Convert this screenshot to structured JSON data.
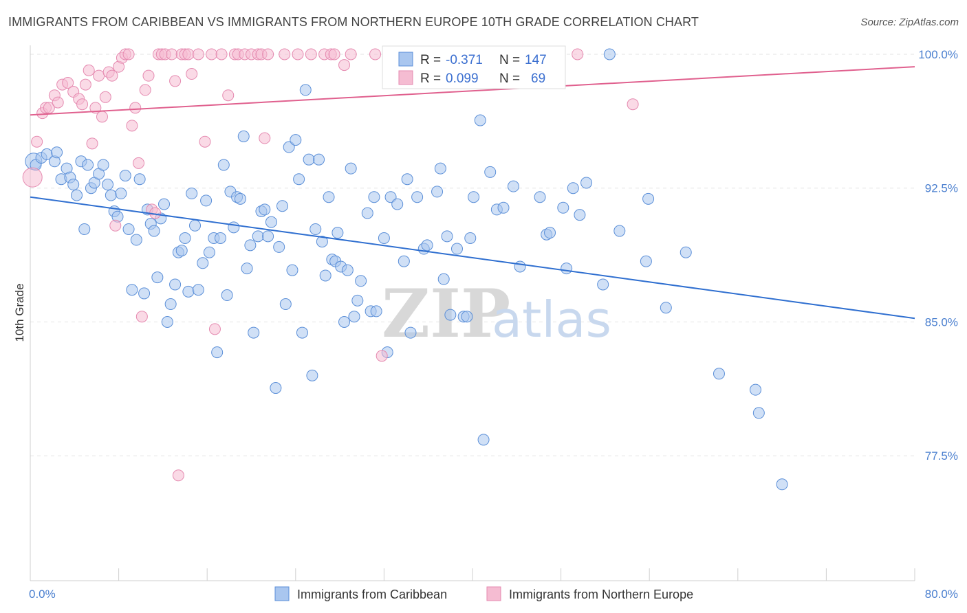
{
  "title": "IMMIGRANTS FROM CARIBBEAN VS IMMIGRANTS FROM NORTHERN EUROPE 10TH GRADE CORRELATION CHART",
  "source": "Source: ZipAtlas.com",
  "watermark": {
    "zip": "ZIP",
    "atlas": "atlas"
  },
  "colors": {
    "blue": "#5b8fd8",
    "blue_fill": "#a9c6ef",
    "blue_line": "#2f6fd0",
    "pink": "#e58ab0",
    "pink_fill": "#f5bcd2",
    "pink_line": "#e0608e"
  },
  "stats": {
    "blue": {
      "r_label": "R =",
      "r_value": "-0.371",
      "n_label": "N =",
      "n_value": "147"
    },
    "pink": {
      "r_label": "R =",
      "r_value": "0.099",
      "n_label": "N =",
      "n_value": "69"
    }
  },
  "chart_data": {
    "type": "scatter",
    "xlabel": "",
    "ylabel": "10th Grade",
    "xlim": [
      0,
      80
    ],
    "ylim": [
      70.5,
      100.5
    ],
    "x_tick_labels": [
      {
        "v": 0,
        "label": "0.0%"
      },
      {
        "v": 80,
        "label": "80.0%"
      }
    ],
    "y_tick_labels": [
      {
        "v": 100,
        "label": "100.0%"
      },
      {
        "v": 92.5,
        "label": "92.5%"
      },
      {
        "v": 85,
        "label": "85.0%"
      },
      {
        "v": 77.5,
        "label": "77.5%"
      }
    ],
    "legend": [
      "Immigrants from Caribbean",
      "Immigrants from Northern Europe"
    ],
    "series": [
      {
        "name": "Immigrants from Caribbean",
        "trend": [
          [
            0,
            92.0
          ],
          [
            80,
            85.2
          ]
        ],
        "points": [
          [
            0.5,
            93.8
          ],
          [
            1.0,
            94.2
          ],
          [
            1.5,
            94.4
          ],
          [
            2.2,
            94.0
          ],
          [
            2.4,
            94.5
          ],
          [
            2.8,
            93.0
          ],
          [
            3.3,
            93.6
          ],
          [
            3.6,
            93.1
          ],
          [
            3.9,
            92.7
          ],
          [
            4.2,
            92.1
          ],
          [
            4.6,
            94.0
          ],
          [
            4.9,
            90.2
          ],
          [
            5.2,
            93.8
          ],
          [
            5.5,
            92.5
          ],
          [
            5.8,
            92.8
          ],
          [
            6.2,
            93.3
          ],
          [
            6.6,
            93.8
          ],
          [
            7.0,
            92.7
          ],
          [
            7.3,
            92.1
          ],
          [
            7.6,
            91.2
          ],
          [
            7.9,
            90.9
          ],
          [
            8.2,
            92.2
          ],
          [
            8.6,
            93.2
          ],
          [
            8.9,
            90.2
          ],
          [
            9.2,
            86.8
          ],
          [
            9.6,
            89.6
          ],
          [
            9.9,
            93.0
          ],
          [
            10.3,
            86.6
          ],
          [
            10.6,
            91.3
          ],
          [
            10.9,
            90.5
          ],
          [
            11.2,
            90.1
          ],
          [
            11.5,
            87.5
          ],
          [
            11.8,
            90.8
          ],
          [
            12.1,
            91.6
          ],
          [
            12.4,
            85.0
          ],
          [
            12.7,
            86.0
          ],
          [
            13.1,
            87.1
          ],
          [
            13.4,
            88.9
          ],
          [
            13.7,
            89.0
          ],
          [
            14.0,
            89.7
          ],
          [
            14.3,
            86.7
          ],
          [
            14.6,
            92.2
          ],
          [
            14.9,
            90.4
          ],
          [
            15.2,
            86.8
          ],
          [
            15.6,
            88.3
          ],
          [
            15.9,
            91.8
          ],
          [
            16.2,
            88.9
          ],
          [
            16.6,
            89.7
          ],
          [
            16.9,
            83.3
          ],
          [
            17.2,
            89.7
          ],
          [
            17.5,
            93.8
          ],
          [
            17.8,
            86.5
          ],
          [
            18.1,
            92.3
          ],
          [
            18.4,
            90.3
          ],
          [
            18.7,
            92.0
          ],
          [
            19.0,
            91.9
          ],
          [
            19.3,
            95.4
          ],
          [
            19.6,
            88.0
          ],
          [
            19.9,
            89.3
          ],
          [
            20.2,
            84.4
          ],
          [
            20.6,
            89.8
          ],
          [
            20.9,
            91.2
          ],
          [
            21.2,
            91.3
          ],
          [
            21.5,
            89.8
          ],
          [
            21.8,
            90.6
          ],
          [
            22.2,
            81.3
          ],
          [
            22.5,
            89.2
          ],
          [
            22.8,
            91.5
          ],
          [
            23.1,
            86.0
          ],
          [
            23.4,
            94.8
          ],
          [
            23.7,
            87.9
          ],
          [
            24.0,
            95.2
          ],
          [
            24.3,
            93.0
          ],
          [
            24.6,
            84.4
          ],
          [
            24.9,
            98.0
          ],
          [
            25.2,
            94.1
          ],
          [
            25.5,
            82.0
          ],
          [
            25.8,
            90.2
          ],
          [
            26.1,
            94.1
          ],
          [
            26.4,
            89.5
          ],
          [
            26.7,
            87.6
          ],
          [
            27.0,
            92.0
          ],
          [
            27.3,
            88.5
          ],
          [
            27.6,
            88.4
          ],
          [
            27.8,
            90.0
          ],
          [
            28.1,
            88.1
          ],
          [
            28.4,
            85.0
          ],
          [
            28.7,
            87.9
          ],
          [
            29.0,
            93.6
          ],
          [
            29.3,
            85.3
          ],
          [
            29.6,
            86.2
          ],
          [
            29.9,
            87.3
          ],
          [
            30.5,
            91.1
          ],
          [
            30.8,
            85.6
          ],
          [
            31.1,
            92.0
          ],
          [
            31.3,
            85.6
          ],
          [
            32.0,
            89.7
          ],
          [
            32.3,
            83.3
          ],
          [
            32.6,
            92.0
          ],
          [
            33.2,
            91.6
          ],
          [
            33.8,
            88.4
          ],
          [
            34.1,
            93.0
          ],
          [
            34.4,
            84.4
          ],
          [
            35.0,
            92.0
          ],
          [
            35.6,
            89.1
          ],
          [
            35.9,
            89.3
          ],
          [
            36.8,
            92.3
          ],
          [
            37.1,
            93.6
          ],
          [
            37.4,
            87.4
          ],
          [
            37.7,
            89.8
          ],
          [
            38.0,
            85.4
          ],
          [
            38.6,
            89.1
          ],
          [
            39.2,
            85.3
          ],
          [
            39.5,
            85.3
          ],
          [
            39.8,
            89.7
          ],
          [
            40.1,
            92.0
          ],
          [
            40.7,
            96.3
          ],
          [
            41.0,
            78.4
          ],
          [
            41.6,
            93.4
          ],
          [
            42.2,
            91.3
          ],
          [
            42.8,
            91.4
          ],
          [
            43.7,
            92.6
          ],
          [
            44.3,
            88.1
          ],
          [
            46.1,
            92.0
          ],
          [
            46.7,
            89.9
          ],
          [
            47.0,
            90.0
          ],
          [
            48.2,
            91.4
          ],
          [
            48.5,
            88.0
          ],
          [
            49.1,
            92.5
          ],
          [
            49.7,
            91.0
          ],
          [
            50.3,
            92.8
          ],
          [
            51.8,
            87.1
          ],
          [
            52.4,
            100.0
          ],
          [
            53.3,
            90.1
          ],
          [
            55.7,
            88.4
          ],
          [
            55.9,
            91.9
          ],
          [
            57.5,
            85.8
          ],
          [
            59.3,
            88.9
          ],
          [
            62.3,
            82.1
          ],
          [
            65.6,
            81.2
          ],
          [
            65.9,
            79.9
          ],
          [
            68.0,
            75.9
          ]
        ],
        "big": [
          [
            0.3,
            94.0,
            12
          ]
        ]
      },
      {
        "name": "Immigrants from Northern Europe",
        "trend": [
          [
            0,
            96.6
          ],
          [
            80,
            99.3
          ]
        ],
        "points": [
          [
            0.6,
            95.1
          ],
          [
            1.1,
            96.7
          ],
          [
            1.4,
            97.0
          ],
          [
            1.7,
            97.0
          ],
          [
            2.2,
            97.7
          ],
          [
            2.5,
            97.3
          ],
          [
            2.9,
            98.3
          ],
          [
            3.4,
            98.4
          ],
          [
            3.9,
            97.9
          ],
          [
            4.4,
            97.5
          ],
          [
            4.7,
            97.2
          ],
          [
            5.0,
            98.3
          ],
          [
            5.3,
            99.1
          ],
          [
            5.6,
            95.0
          ],
          [
            5.9,
            97.0
          ],
          [
            6.2,
            98.8
          ],
          [
            6.5,
            96.5
          ],
          [
            6.8,
            97.6
          ],
          [
            7.1,
            99.0
          ],
          [
            7.4,
            98.8
          ],
          [
            7.7,
            90.4
          ],
          [
            8.0,
            99.3
          ],
          [
            8.3,
            99.8
          ],
          [
            8.6,
            100.0
          ],
          [
            8.9,
            100.0
          ],
          [
            9.2,
            96.0
          ],
          [
            9.5,
            97.0
          ],
          [
            9.8,
            93.9
          ],
          [
            10.1,
            85.3
          ],
          [
            10.4,
            98.0
          ],
          [
            10.7,
            98.8
          ],
          [
            11.0,
            91.3
          ],
          [
            11.3,
            91.1
          ],
          [
            11.6,
            100.0
          ],
          [
            11.9,
            100.0
          ],
          [
            12.2,
            100.0
          ],
          [
            12.8,
            100.0
          ],
          [
            13.1,
            98.5
          ],
          [
            13.4,
            76.4
          ],
          [
            13.7,
            100.0
          ],
          [
            14.0,
            100.0
          ],
          [
            14.3,
            100.0
          ],
          [
            14.6,
            98.9
          ],
          [
            15.2,
            100.0
          ],
          [
            15.8,
            95.1
          ],
          [
            16.4,
            100.0
          ],
          [
            16.7,
            84.6
          ],
          [
            17.3,
            100.0
          ],
          [
            17.9,
            97.7
          ],
          [
            18.5,
            100.0
          ],
          [
            18.8,
            100.0
          ],
          [
            19.4,
            100.0
          ],
          [
            20.0,
            100.0
          ],
          [
            20.6,
            100.0
          ],
          [
            20.9,
            100.0
          ],
          [
            21.2,
            95.3
          ],
          [
            21.5,
            100.0
          ],
          [
            23.0,
            100.0
          ],
          [
            24.2,
            100.0
          ],
          [
            25.4,
            100.0
          ],
          [
            26.6,
            100.0
          ],
          [
            27.2,
            100.0
          ],
          [
            27.5,
            100.0
          ],
          [
            28.4,
            99.4
          ],
          [
            29.0,
            100.0
          ],
          [
            31.2,
            100.0
          ],
          [
            31.8,
            83.1
          ],
          [
            41.0,
            100.0
          ],
          [
            49.5,
            100.0
          ],
          [
            54.5,
            97.2
          ]
        ],
        "big": [
          [
            0.2,
            93.1,
            14
          ]
        ]
      }
    ]
  }
}
